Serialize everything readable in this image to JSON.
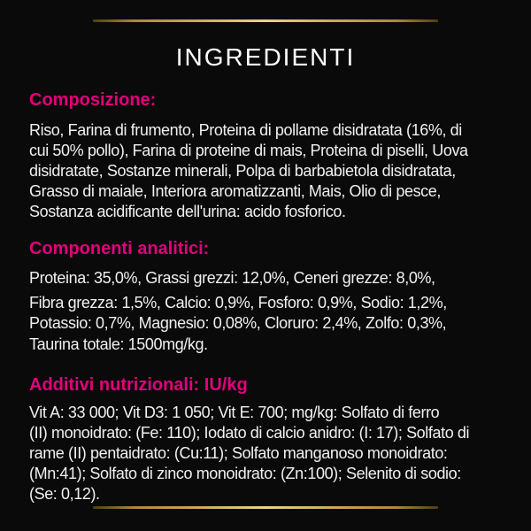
{
  "page": {
    "title": "INGREDIENTI",
    "background_color": "#0A0A0A",
    "accent_color": "#E2017B",
    "body_text_color": "#F0F0F0",
    "title_color": "#FFFFFF",
    "divider_gold_dark": "#4F3D18",
    "divider_gold_light": "#ECD28A"
  },
  "sections": {
    "composizione": {
      "heading": "Composizione:",
      "lines": [
        "Riso, Farina di frumento, Proteina di pollame disidratata (16%, di",
        "cui 50% pollo), Farina di proteine di mais, Proteina di piselli, Uova",
        "disidratate, Sostanze minerali, Polpa di barbabietola disidratata,",
        "Grasso di maiale, Interiora aromatizzanti, Mais, Olio di pesce,",
        "Sostanza acidificante dell'urina: acido fosforico."
      ]
    },
    "analitici": {
      "heading": "Componenti analitici:",
      "para1_lines": [
        "Proteina: 35,0%, Grassi grezzi: 12,0%, Ceneri grezze: 8,0%,"
      ],
      "para2_lines": [
        "Fibra grezza: 1,5%, Calcio: 0,9%, Fosforo: 0,9%, Sodio: 1,2%,",
        "Potassio: 0,7%, Magnesio: 0,08%, Cloruro: 2,4%, Zolfo: 0,3%,"
      ],
      "para3_lines": [
        "Taurina totale: 1500mg/kg."
      ]
    },
    "additivi": {
      "heading": "Additivi nutrizionali: IU/kg",
      "lines": [
        "Vit A: 33 000; Vit D3: 1 050; Vit E: 700; mg/kg: Solfato di ferro",
        "(II) monoidrato: (Fe: 110); Iodato di calcio anidro: (I: 17); Solfato di",
        "rame (II) pentaidrato: (Cu:11); Solfato manganoso monoidrato:",
        "(Mn:41); Solfato di zinco monoidrato: (Zn:100); Selenito di sodio:",
        "(Se: 0,12)."
      ]
    }
  }
}
